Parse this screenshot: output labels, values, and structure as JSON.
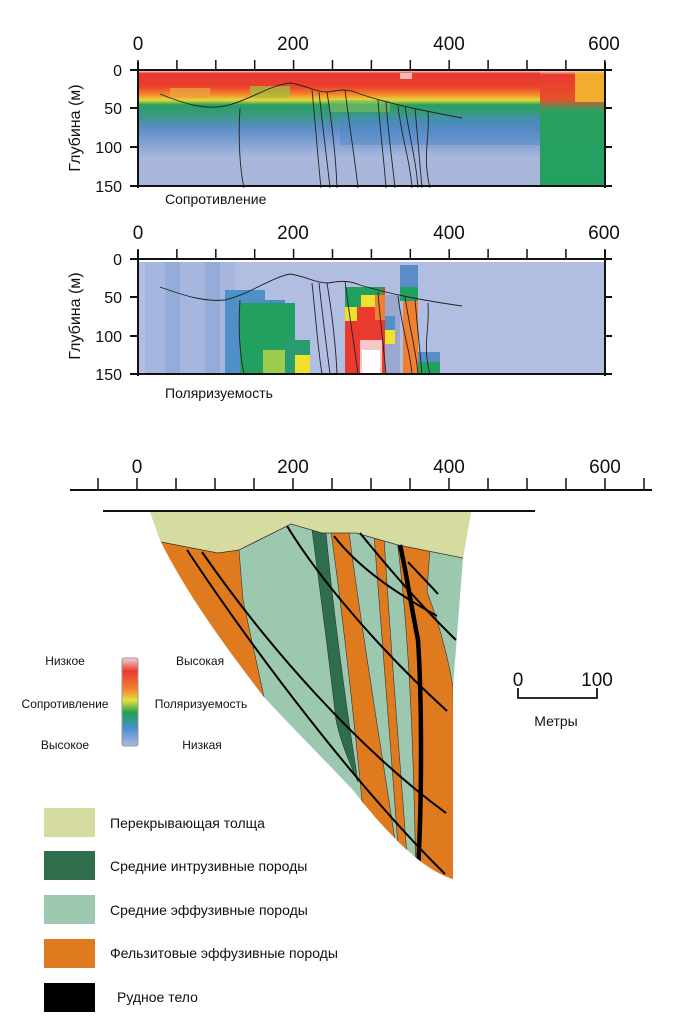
{
  "resistivity_panel": {
    "x_ticks": [
      "0",
      "200",
      "400",
      "600"
    ],
    "depth_ticks": [
      "0",
      "50",
      "100",
      "150"
    ],
    "y_label": "Глубина (м)",
    "caption": "Сопротивление"
  },
  "polarizability_panel": {
    "x_ticks": [
      "0",
      "200",
      "400",
      "600"
    ],
    "depth_ticks": [
      "0",
      "50",
      "100",
      "150"
    ],
    "y_label": "Глубина (м)",
    "caption": "Поляризуемость"
  },
  "section": {
    "x_ticks": [
      "0",
      "200",
      "400",
      "600"
    ]
  },
  "colorbar": {
    "left_top": "Низкое",
    "left_mid": "Сопротивление",
    "left_bottom": "Высокое",
    "right_top": "Высокая",
    "right_mid": "Поляризуемость",
    "right_bottom": "Низкая"
  },
  "scale_bar": {
    "start": "0",
    "end": "100",
    "unit": "Метры"
  },
  "legend": [
    {
      "label": "Перекрывающая толща",
      "color": "#d6dca0"
    },
    {
      "label": "Средние интрузивные породы",
      "color": "#2e6e4c"
    },
    {
      "label": "Средние эффузивные породы",
      "color": "#9cc8b0"
    },
    {
      "label": "Фельзитовые эффузивные породы",
      "color": "#e07a1e"
    },
    {
      "label": "Рудное тело",
      "color": "#000000"
    }
  ]
}
